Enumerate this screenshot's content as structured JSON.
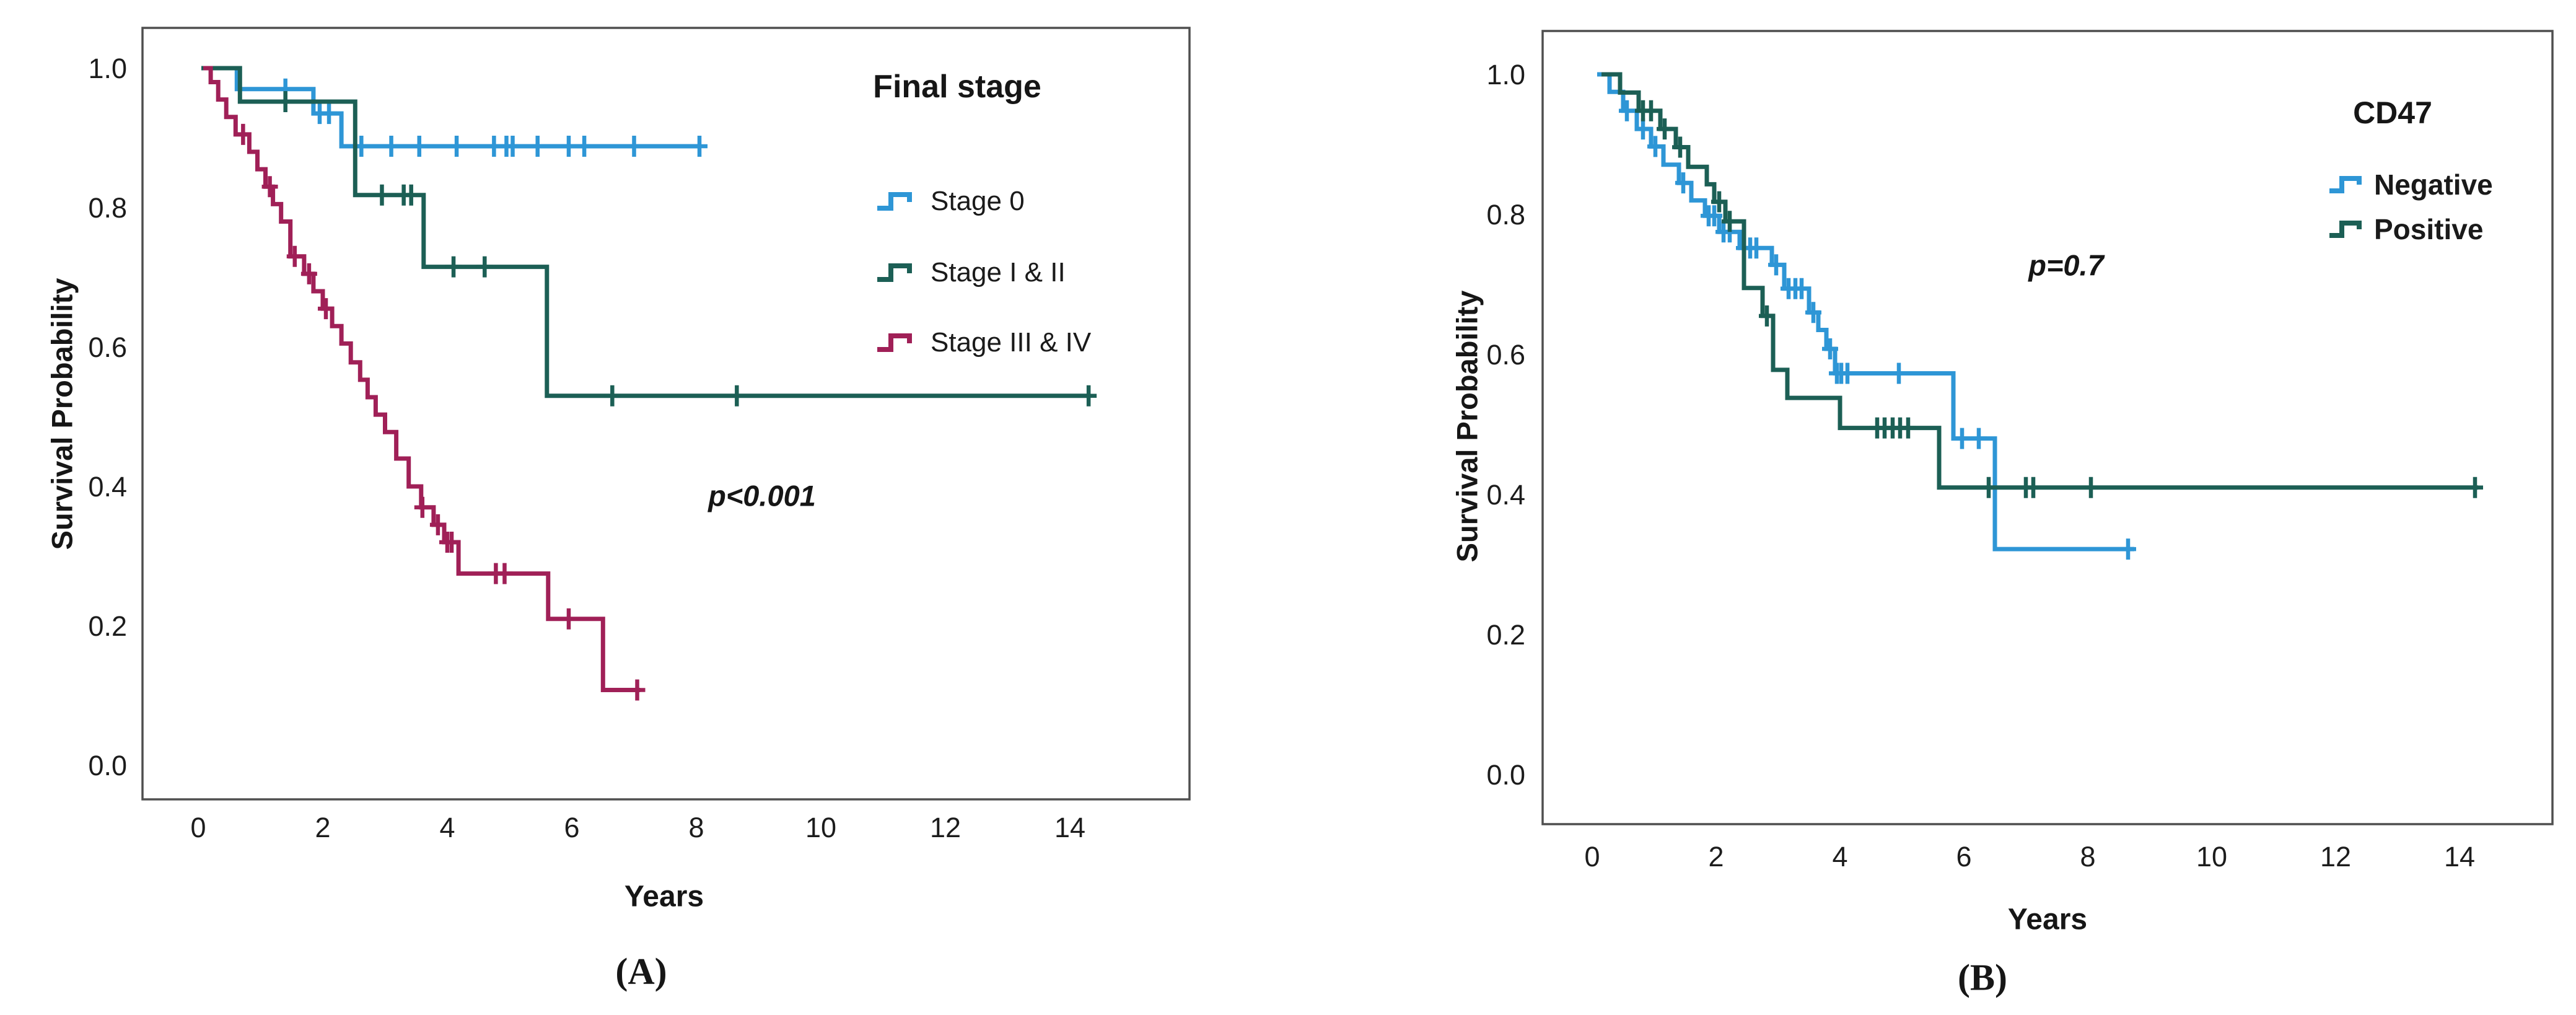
{
  "figure": {
    "panel_a": {
      "caption": "(A)",
      "x_axis_label": "Years",
      "y_axis_label": "Survival Probability",
      "legend_title": "Final stage",
      "p_value": "p<0.001"
    },
    "panel_b": {
      "caption": "(B)",
      "x_axis_label": "Years",
      "y_axis_label": "Survival Probability",
      "legend_title": "CD47",
      "p_value": "p=0.7"
    }
  },
  "chart_data": [
    {
      "type": "line",
      "subtype": "kaplan_meier_step",
      "panel": "A",
      "title": "Final stage",
      "xlabel": "Years",
      "ylabel": "Survival Probability",
      "annotation": "p<0.001",
      "legend_position": "inside-top-right",
      "grid": false,
      "xlim": [
        -0.9,
        15.6
      ],
      "ylim": [
        -0.05,
        1.06
      ],
      "x_ticks": [
        0,
        2,
        4,
        6,
        8,
        10,
        12,
        14
      ],
      "y_ticks": [
        1.0,
        0.8,
        0.6,
        0.4,
        0.2,
        0.0
      ],
      "series": [
        {
          "name": "Stage 0",
          "color": "#2E96D6",
          "steps": [
            [
              0.05,
              1.0
            ],
            [
              0.62,
              0.97
            ],
            [
              1.85,
              0.935
            ],
            [
              2.3,
              0.888
            ],
            [
              8.05,
              0.888
            ]
          ],
          "censors": [
            [
              1.4,
              0.97
            ],
            [
              1.95,
              0.935
            ],
            [
              2.1,
              0.935
            ],
            [
              2.62,
              0.888
            ],
            [
              3.1,
              0.888
            ],
            [
              3.55,
              0.888
            ],
            [
              4.15,
              0.888
            ],
            [
              4.75,
              0.888
            ],
            [
              4.95,
              0.888
            ],
            [
              5.05,
              0.888
            ],
            [
              5.45,
              0.888
            ],
            [
              5.95,
              0.888
            ],
            [
              6.2,
              0.888
            ],
            [
              7.0,
              0.888
            ],
            [
              8.05,
              0.888
            ]
          ]
        },
        {
          "name": "Stage I & II",
          "color": "#1C5F55",
          "steps": [
            [
              0.05,
              1.0
            ],
            [
              0.67,
              0.952
            ],
            [
              2.52,
              0.818
            ],
            [
              3.62,
              0.715
            ],
            [
              5.6,
              0.53
            ],
            [
              14.3,
              0.53
            ]
          ],
          "censors": [
            [
              1.4,
              0.952
            ],
            [
              2.95,
              0.818
            ],
            [
              3.3,
              0.818
            ],
            [
              3.42,
              0.818
            ],
            [
              4.1,
              0.715
            ],
            [
              4.6,
              0.715
            ],
            [
              6.65,
              0.53
            ],
            [
              8.65,
              0.53
            ],
            [
              14.3,
              0.53
            ]
          ]
        },
        {
          "name": "Stage III & IV",
          "color": "#A02057",
          "steps": [
            [
              0.08,
              1.0
            ],
            [
              0.2,
              0.98
            ],
            [
              0.32,
              0.955
            ],
            [
              0.45,
              0.93
            ],
            [
              0.6,
              0.905
            ],
            [
              0.82,
              0.88
            ],
            [
              0.95,
              0.855
            ],
            [
              1.08,
              0.83
            ],
            [
              1.2,
              0.805
            ],
            [
              1.33,
              0.78
            ],
            [
              1.48,
              0.73
            ],
            [
              1.7,
              0.705
            ],
            [
              1.85,
              0.68
            ],
            [
              2.0,
              0.655
            ],
            [
              2.15,
              0.63
            ],
            [
              2.3,
              0.605
            ],
            [
              2.45,
              0.578
            ],
            [
              2.6,
              0.553
            ],
            [
              2.72,
              0.528
            ],
            [
              2.85,
              0.503
            ],
            [
              3.0,
              0.478
            ],
            [
              3.18,
              0.44
            ],
            [
              3.38,
              0.4
            ],
            [
              3.58,
              0.37
            ],
            [
              3.78,
              0.345
            ],
            [
              3.95,
              0.32
            ],
            [
              4.18,
              0.275
            ],
            [
              5.62,
              0.21
            ],
            [
              6.5,
              0.108
            ],
            [
              7.1,
              0.108
            ]
          ],
          "censors": [
            [
              0.72,
              0.905
            ],
            [
              1.15,
              0.83
            ],
            [
              1.55,
              0.73
            ],
            [
              1.78,
              0.705
            ],
            [
              2.05,
              0.655
            ],
            [
              3.6,
              0.37
            ],
            [
              3.85,
              0.345
            ],
            [
              4.0,
              0.32
            ],
            [
              4.07,
              0.32
            ],
            [
              4.78,
              0.275
            ],
            [
              4.92,
              0.275
            ],
            [
              5.95,
              0.21
            ],
            [
              7.05,
              0.108
            ]
          ]
        }
      ]
    },
    {
      "type": "line",
      "subtype": "kaplan_meier_step",
      "panel": "B",
      "title": "CD47",
      "xlabel": "Years",
      "ylabel": "Survival Probability",
      "annotation": "p=0.7",
      "legend_position": "inside-top-right",
      "grid": false,
      "xlim": [
        -0.9,
        15.6
      ],
      "ylim": [
        -0.05,
        1.06
      ],
      "x_ticks": [
        0,
        2,
        4,
        6,
        8,
        10,
        12,
        14
      ],
      "y_ticks": [
        1.0,
        0.8,
        0.6,
        0.4,
        0.2,
        0.0
      ],
      "series": [
        {
          "name": "Negative",
          "color": "#2E96D6",
          "steps": [
            [
              0.08,
              1.0
            ],
            [
              0.28,
              0.975
            ],
            [
              0.5,
              0.948
            ],
            [
              0.72,
              0.922
            ],
            [
              0.95,
              0.897
            ],
            [
              1.15,
              0.871
            ],
            [
              1.4,
              0.845
            ],
            [
              1.6,
              0.82
            ],
            [
              1.82,
              0.798
            ],
            [
              2.05,
              0.775
            ],
            [
              2.38,
              0.752
            ],
            [
              2.9,
              0.728
            ],
            [
              3.1,
              0.694
            ],
            [
              3.5,
              0.66
            ],
            [
              3.65,
              0.635
            ],
            [
              3.78,
              0.608
            ],
            [
              3.92,
              0.573
            ],
            [
              5.83,
              0.48
            ],
            [
              6.5,
              0.322
            ],
            [
              8.75,
              0.322
            ]
          ],
          "censors": [
            [
              0.56,
              0.948
            ],
            [
              0.82,
              0.922
            ],
            [
              1.02,
              0.897
            ],
            [
              1.47,
              0.845
            ],
            [
              1.88,
              0.798
            ],
            [
              1.97,
              0.798
            ],
            [
              2.12,
              0.775
            ],
            [
              2.22,
              0.775
            ],
            [
              2.45,
              0.752
            ],
            [
              2.55,
              0.752
            ],
            [
              2.65,
              0.752
            ],
            [
              2.97,
              0.728
            ],
            [
              3.17,
              0.694
            ],
            [
              3.28,
              0.694
            ],
            [
              3.38,
              0.694
            ],
            [
              3.57,
              0.66
            ],
            [
              3.84,
              0.608
            ],
            [
              3.95,
              0.573
            ],
            [
              4.02,
              0.573
            ],
            [
              4.12,
              0.573
            ],
            [
              4.95,
              0.573
            ],
            [
              5.97,
              0.48
            ],
            [
              6.24,
              0.48
            ],
            [
              8.65,
              0.322
            ]
          ]
        },
        {
          "name": "Positive",
          "color": "#1C5F55",
          "steps": [
            [
              0.15,
              1.0
            ],
            [
              0.45,
              0.974
            ],
            [
              0.75,
              0.948
            ],
            [
              1.1,
              0.922
            ],
            [
              1.35,
              0.896
            ],
            [
              1.55,
              0.868
            ],
            [
              1.85,
              0.843
            ],
            [
              1.97,
              0.818
            ],
            [
              2.15,
              0.79
            ],
            [
              2.45,
              0.695
            ],
            [
              2.75,
              0.655
            ],
            [
              2.92,
              0.578
            ],
            [
              3.15,
              0.538
            ],
            [
              4.0,
              0.495
            ],
            [
              5.6,
              0.41
            ],
            [
              14.3,
              0.41
            ]
          ],
          "censors": [
            [
              0.82,
              0.948
            ],
            [
              0.95,
              0.948
            ],
            [
              1.17,
              0.922
            ],
            [
              1.42,
              0.896
            ],
            [
              2.05,
              0.818
            ],
            [
              2.22,
              0.79
            ],
            [
              2.82,
              0.655
            ],
            [
              4.6,
              0.495
            ],
            [
              4.72,
              0.495
            ],
            [
              4.85,
              0.495
            ],
            [
              4.97,
              0.495
            ],
            [
              5.1,
              0.495
            ],
            [
              6.4,
              0.41
            ],
            [
              7.0,
              0.41
            ],
            [
              7.12,
              0.41
            ],
            [
              8.05,
              0.41
            ],
            [
              14.25,
              0.41
            ]
          ]
        }
      ]
    }
  ]
}
